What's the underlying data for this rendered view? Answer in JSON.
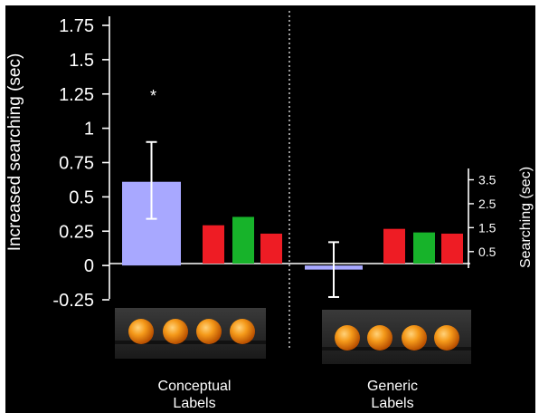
{
  "chart_data": {
    "type": "bar",
    "ylabel": "Increased searching (sec)",
    "ylim": [
      -0.25,
      1.75
    ],
    "yticks": [
      "1.75",
      "1.5",
      "1.25",
      "1",
      "0.75",
      "0.5",
      "0.25",
      "0",
      "-0.25"
    ],
    "secondary_axis": {
      "ylabel": "Searching (sec)",
      "yticks": [
        "3.5",
        "2.5",
        "1.5",
        "0.5"
      ],
      "ylim": [
        0,
        4.2
      ]
    },
    "groups": [
      {
        "label": "Conceptual\nLabels",
        "label_lines": [
          "Conceptual",
          "Labels"
        ],
        "increase": {
          "value": 0.61,
          "error_high": 0.9,
          "error_low": 0.34,
          "annotation": "*",
          "color": "#a8a8ff"
        },
        "searching": [
          {
            "value": 1.6,
            "color": "#ee1c24"
          },
          {
            "value": 1.95,
            "color": "#17b32a"
          },
          {
            "value": 1.25,
            "color": "#ee1c24"
          }
        ]
      },
      {
        "label": "Generic\nLabels",
        "label_lines": [
          "Generic",
          "Labels"
        ],
        "increase": {
          "value": -0.03,
          "error_high": 0.17,
          "error_low": -0.23,
          "annotation": "",
          "color": "#a8a8ff"
        },
        "searching": [
          {
            "value": 1.45,
            "color": "#ee1c24"
          },
          {
            "value": 1.3,
            "color": "#17b32a"
          },
          {
            "value": 1.25,
            "color": "#ee1c24"
          }
        ]
      }
    ],
    "grid": false,
    "legend": "none"
  }
}
